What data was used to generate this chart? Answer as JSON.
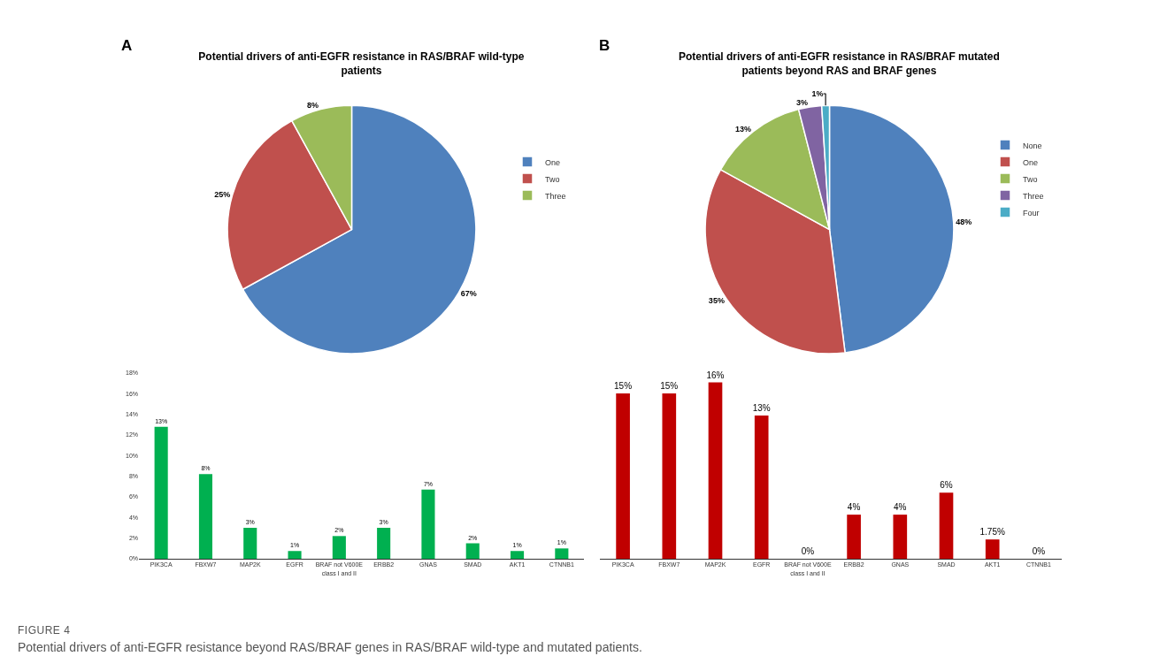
{
  "chart_data": [
    {
      "type": "pie",
      "title": "Potential drivers of anti-EGFR resistance in RAS/BRAF wild-type patients",
      "annotations": [
        "A"
      ],
      "categories": [
        "One",
        "Two",
        "Three"
      ],
      "values": [
        67,
        25,
        8
      ],
      "colors": [
        "#4f81bd",
        "#c0504d",
        "#9bbb59"
      ],
      "value_labels": [
        "67%",
        "25%",
        "8%"
      ],
      "legend": "right"
    },
    {
      "type": "pie",
      "title": "Potential drivers of anti-EGFR resistance in RAS/BRAF mutated patients beyond RAS and BRAF genes",
      "annotations": [
        "B"
      ],
      "categories": [
        "None",
        "One",
        "Two",
        "Three",
        "Four"
      ],
      "values": [
        48,
        35,
        13,
        3,
        1
      ],
      "colors": [
        "#4f81bd",
        "#c0504d",
        "#9bbb59",
        "#8064a2",
        "#4bacc6"
      ],
      "value_labels": [
        "48%",
        "35%",
        "13%",
        "3%",
        "1%"
      ],
      "legend": "right"
    },
    {
      "type": "bar",
      "annotations": [
        "FIGURE 4",
        "Potential drivers of anti-EGFR resistance beyond RAS/BRAF genes in RAS/BRAF wild-type and mutated patients."
      ],
      "categories": [
        "PIK3CA",
        "FBXW7",
        "MAP2K",
        "EGFR",
        "BRAF not V600E class I and II",
        "ERBB2",
        "GNAS",
        "SMAD",
        "AKT1",
        "CTNNB1"
      ],
      "values": [
        12.8,
        8.2,
        3.0,
        0.75,
        2.2,
        3.0,
        6.7,
        1.5,
        0.75,
        1.0
      ],
      "value_labels": [
        "13%",
        "8%",
        "3%",
        "1%",
        "2%",
        "3%",
        "7%",
        "2%",
        "1%",
        "1%"
      ],
      "color": "#00b050",
      "ylim": [
        0,
        18
      ],
      "yticks": [
        {
          "value": 0,
          "label": "0%"
        },
        {
          "value": 2,
          "label": "2%"
        },
        {
          "value": 4,
          "label": "4%"
        },
        {
          "value": 6,
          "label": "6%"
        },
        {
          "value": 8,
          "label": "8%"
        },
        {
          "value": 10,
          "label": "10%"
        },
        {
          "value": 12,
          "label": "12%"
        },
        {
          "value": 14,
          "label": "14%"
        },
        {
          "value": 16,
          "label": "16%"
        },
        {
          "value": 18,
          "label": "18%"
        }
      ],
      "grid": false
    },
    {
      "type": "bar",
      "categories": [
        "PIK3CA",
        "FBXW7",
        "MAP2K",
        "EGFR",
        "BRAF not V600E class I and II",
        "ERBB2",
        "GNAS",
        "SMAD",
        "AKT1",
        "CTNNB1"
      ],
      "values": [
        15,
        15,
        16,
        13,
        0,
        4,
        4,
        6,
        1.75,
        0
      ],
      "value_labels": [
        "15%",
        "15%",
        "16%",
        "13%",
        "0%",
        "4%",
        "4%",
        "6%",
        "1.75%",
        "0%"
      ],
      "color": "#c00000",
      "tick_labels": "x",
      "grid": false
    }
  ]
}
